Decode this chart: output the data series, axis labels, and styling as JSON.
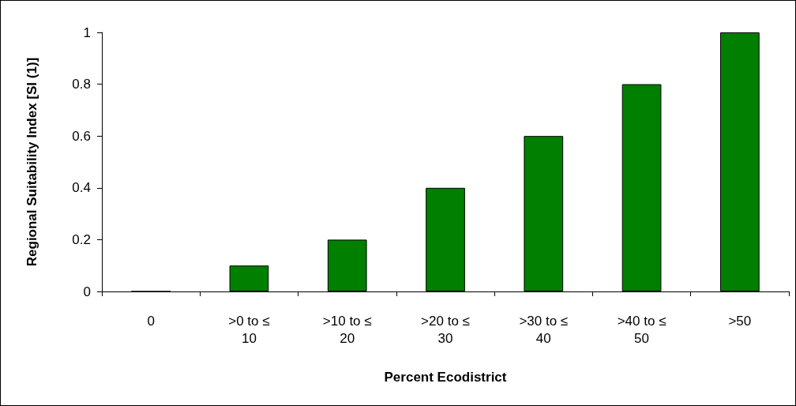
{
  "chart_data": {
    "type": "bar",
    "xlabel": "Percent Ecodistrict",
    "ylabel": "Regional Suitability Index [SI (1)]",
    "categories": [
      "0",
      ">0 to ≤10",
      ">10 to ≤20",
      ">20 to ≤30",
      ">30 to ≤40",
      ">40 to ≤50",
      ">50"
    ],
    "values": [
      0,
      0.1,
      0.2,
      0.4,
      0.6,
      0.8,
      1
    ],
    "color": "#007f00",
    "ylim": [
      0,
      1
    ],
    "yticks": [
      0,
      0.2,
      0.4,
      0.6,
      0.8,
      1
    ],
    "grid": false
  }
}
